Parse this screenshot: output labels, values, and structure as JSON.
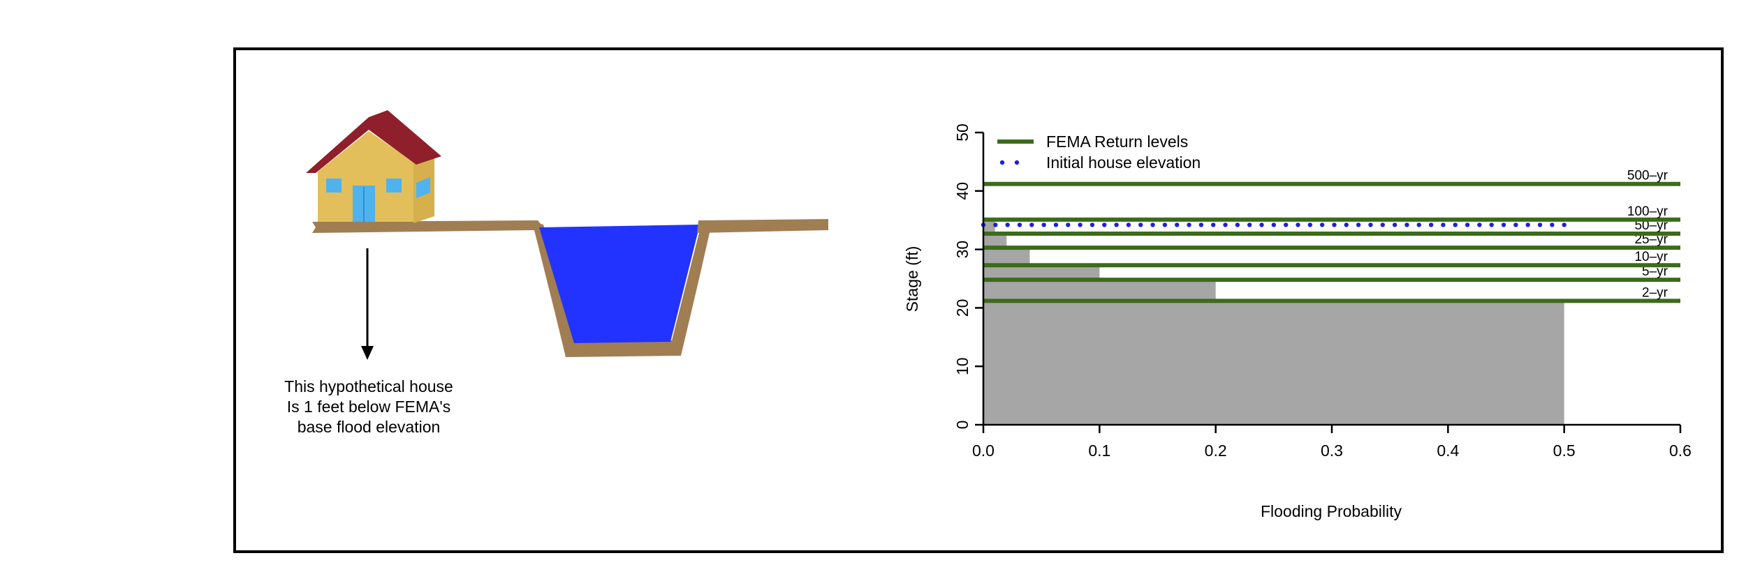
{
  "caption": {
    "line1": "This hypothetical house",
    "line2": "Is 1 feet below FEMA's",
    "line3": "base flood elevation"
  },
  "colors": {
    "return_level": "#3d6b1a",
    "house_elevation": "#1f1fe0",
    "bars": "#a6a6a6",
    "water": "#2233ff",
    "ground": "#a07e52",
    "house_wall": "#e2bf5a",
    "roof": "#8f1f2a",
    "window": "#4fb3f0"
  },
  "chart_data": {
    "type": "bar",
    "xlabel": "Flooding Probability",
    "ylabel": "Stage (ft)",
    "xlim": [
      0,
      0.6
    ],
    "ylim": [
      0,
      50
    ],
    "xticks": [
      "0.0",
      "0.1",
      "0.2",
      "0.3",
      "0.4",
      "0.5",
      "0.6"
    ],
    "yticks": [
      "0",
      "10",
      "20",
      "30",
      "40",
      "50"
    ],
    "grid": false,
    "legend": {
      "placement": "top-left",
      "entries": [
        "FEMA Return levels",
        "Initial house elevation"
      ]
    },
    "bars": [
      {
        "probability": 0.5,
        "stage": 21.2
      },
      {
        "probability": 0.2,
        "stage": 24.8
      },
      {
        "probability": 0.1,
        "stage": 27.3
      },
      {
        "probability": 0.04,
        "stage": 30.3
      },
      {
        "probability": 0.02,
        "stage": 32.7
      },
      {
        "probability": 0.01,
        "stage": 35.1
      }
    ],
    "return_levels": [
      {
        "label": "2–yr",
        "stage": 21.2
      },
      {
        "label": "5–yr",
        "stage": 24.8
      },
      {
        "label": "10–yr",
        "stage": 27.3
      },
      {
        "label": "25–yr",
        "stage": 30.3
      },
      {
        "label": "50–yr",
        "stage": 32.7
      },
      {
        "label": "100–yr",
        "stage": 35.1
      },
      {
        "label": "500–yr",
        "stage": 41.2
      }
    ],
    "house_elevation": {
      "stage": 34.2,
      "x_range": [
        0,
        0.5
      ]
    }
  }
}
